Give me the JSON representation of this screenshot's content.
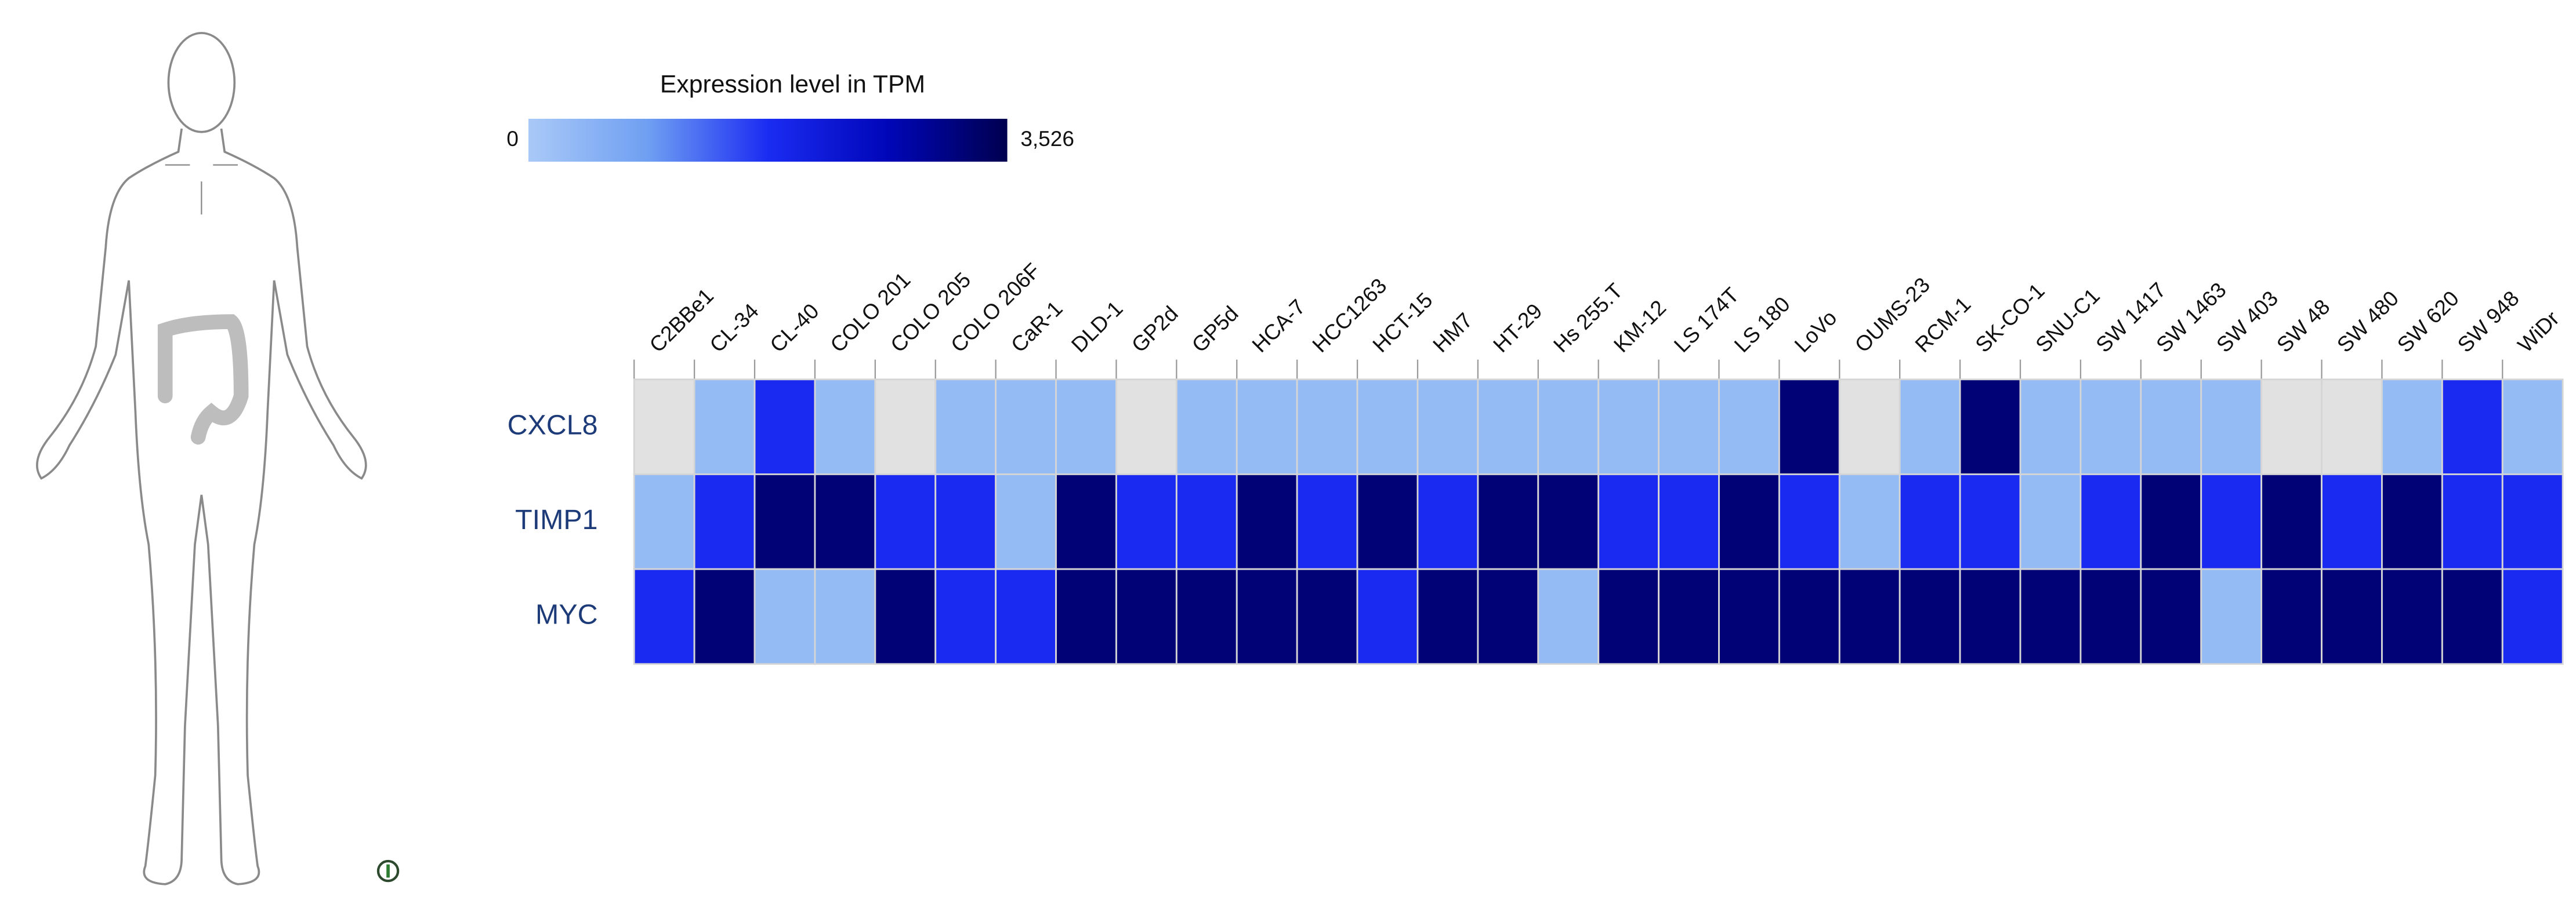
{
  "chart_data": {
    "type": "heatmap",
    "title": "Expression level in TPM",
    "zlim": [
      0,
      3526
    ],
    "zticks": [
      0,
      {
        "value": 3526,
        "label": "3,526"
      }
    ],
    "colorscale": [
      "#a9c9f7",
      "#6f9ff2",
      "#1b2cf2",
      "#0006b8",
      "#00004f"
    ],
    "missing_color": "#e1e1e1",
    "rows": [
      "CXCL8",
      "TIMP1",
      "MYC"
    ],
    "columns": [
      "C2BBe1",
      "CL-34",
      "CL-40",
      "COLO 201",
      "COLO 205",
      "COLO 206F",
      "CaR-1",
      "DLD-1",
      "GP2d",
      "GP5d",
      "HCA-7",
      "HCC1263",
      "HCT-15",
      "HM7",
      "HT-29",
      "Hs 255.T",
      "KM-12",
      "LS 174T",
      "LS 180",
      "LoVo",
      "OUMS-23",
      "RCM-1",
      "SK-CO-1",
      "SNU-C1",
      "SW 1417",
      "SW 1463",
      "SW 403",
      "SW 48",
      "SW 480",
      "SW 620",
      "SW 948",
      "WiDr"
    ],
    "values": [
      [
        null,
        300,
        1800,
        300,
        null,
        300,
        300,
        300,
        null,
        300,
        300,
        300,
        300,
        300,
        300,
        300,
        300,
        300,
        300,
        3200,
        null,
        300,
        3200,
        300,
        300,
        300,
        300,
        null,
        null,
        300,
        1800,
        300
      ],
      [
        300,
        1800,
        3200,
        3200,
        1800,
        1800,
        300,
        3200,
        1800,
        1800,
        3200,
        1800,
        3200,
        1800,
        3200,
        3200,
        1800,
        1800,
        3200,
        1800,
        300,
        1800,
        1800,
        300,
        1800,
        3200,
        1800,
        3200,
        1800,
        3200,
        1800,
        1800
      ],
      [
        1800,
        3200,
        300,
        300,
        3200,
        1800,
        1800,
        3200,
        3200,
        3200,
        3200,
        3200,
        1800,
        3200,
        3200,
        300,
        3200,
        3200,
        3200,
        3200,
        3200,
        3200,
        3200,
        3200,
        3200,
        3200,
        300,
        3200,
        3200,
        3200,
        3200,
        1800
      ]
    ]
  }
}
